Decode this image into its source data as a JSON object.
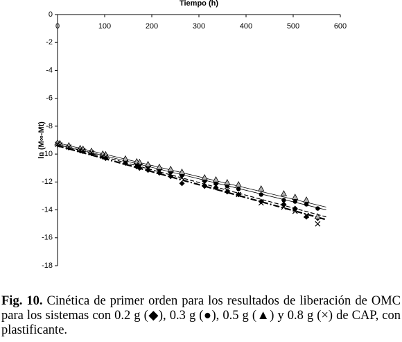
{
  "chart_data": {
    "type": "scatter",
    "x_label": "Tiempo (h)",
    "y_label": "ln (M∞-Mt)",
    "xlim": [
      0,
      600
    ],
    "xticks": [
      0,
      100,
      200,
      300,
      400,
      500,
      600
    ],
    "ylim": [
      -18,
      0
    ],
    "yticks": [
      0,
      -2,
      -4,
      -6,
      -8,
      -10,
      -12,
      -14,
      -16,
      -18
    ],
    "x": [
      0,
      5,
      24,
      48,
      54,
      72,
      96,
      102,
      144,
      168,
      174,
      192,
      216,
      240,
      264,
      312,
      336,
      360,
      384,
      432,
      480,
      504,
      528,
      552
    ],
    "series": [
      {
        "marker": "diamond",
        "color": "#000000",
        "values": [
          -9.3,
          -9.35,
          -9.55,
          -9.75,
          -9.8,
          -9.95,
          -10.2,
          -10.3,
          -10.65,
          -10.9,
          -11.0,
          -11.15,
          -11.35,
          -11.6,
          -12.1,
          -12.3,
          -12.4,
          -12.7,
          -12.9,
          -13.4,
          -13.6,
          -13.9,
          -14.5,
          -14.6
        ]
      },
      {
        "marker": "circle",
        "color": "#000000",
        "values": [
          -9.25,
          -9.3,
          -9.45,
          -9.65,
          -9.7,
          -9.85,
          -10.05,
          -10.1,
          -10.45,
          -10.7,
          -10.75,
          -10.9,
          -11.1,
          -11.3,
          -11.5,
          -11.9,
          -12.1,
          -12.3,
          -12.5,
          -12.9,
          -13.3,
          -13.4,
          -13.6,
          -13.9
        ]
      },
      {
        "marker": "triangle",
        "color": "#b0b0b0",
        "values": [
          -9.2,
          -9.25,
          -9.4,
          -9.6,
          -9.65,
          -9.8,
          -10.0,
          -10.05,
          -10.35,
          -10.55,
          -10.6,
          -10.75,
          -10.95,
          -11.1,
          -11.3,
          -11.7,
          -11.85,
          -12.05,
          -12.2,
          -12.5,
          -12.85,
          -13.1,
          -13.3,
          -14.5
        ]
      },
      {
        "marker": "x",
        "color": "#000000",
        "values": [
          -9.3,
          -9.35,
          -9.5,
          -9.7,
          -9.75,
          -9.9,
          -10.15,
          -10.2,
          -10.6,
          -10.8,
          -10.85,
          -11.0,
          -11.25,
          -11.45,
          -11.7,
          -12.1,
          -12.3,
          -12.6,
          -12.9,
          -13.5,
          -13.8,
          -14.1,
          -14.4,
          -15.0
        ]
      }
    ],
    "trendlines": [
      {
        "x": [
          0,
          570
        ],
        "values": [
          -9.2,
          -13.8
        ],
        "style": "solid"
      },
      {
        "x": [
          0,
          570
        ],
        "values": [
          -9.3,
          -14.0
        ],
        "style": "solid"
      },
      {
        "x": [
          0,
          570
        ],
        "values": [
          -9.4,
          -14.7
        ],
        "style": "dashdot"
      },
      {
        "x": [
          0,
          570
        ],
        "values": [
          -9.3,
          -14.5
        ],
        "style": "dashed"
      }
    ]
  },
  "caption": {
    "label": "Fig. 10.",
    "text": " Cinética de primer orden para los resultados de liberación de OMC para los sistemas con 0.2 g (◆), 0.3 g (●), 0.5 g (▲) y 0.8 g (×) de CAP, con plastificante."
  }
}
